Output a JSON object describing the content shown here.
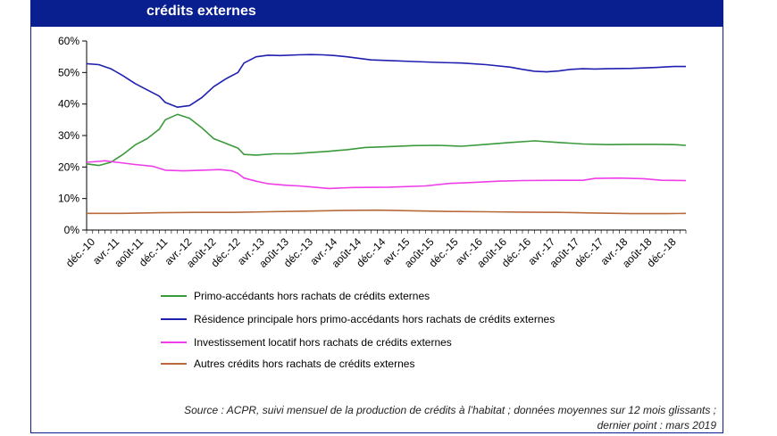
{
  "header": {
    "title": "crédits externes"
  },
  "chart_data": {
    "type": "line",
    "title": "crédits externes",
    "ylim": [
      0,
      60
    ],
    "yticks": [
      "0%",
      "10%",
      "20%",
      "30%",
      "40%",
      "50%",
      "60%"
    ],
    "ytick_values": [
      0,
      10,
      20,
      30,
      40,
      50,
      60
    ],
    "grid": false,
    "legend_position": "bottom",
    "x_tick_labels": [
      "déc.-10",
      "avr.-11",
      "août-11",
      "déc.-11",
      "avr.-12",
      "août-12",
      "déc.-12",
      "avr.-13",
      "août-13",
      "déc.-13",
      "avr.-14",
      "août-14",
      "déc.-14",
      "avr.-15",
      "août-15",
      "déc.-15",
      "avr.-16",
      "août-16",
      "déc.-16",
      "avr.-17",
      "août-17",
      "déc.-17",
      "avr.-18",
      "août-18",
      "déc.-18"
    ],
    "x_tick_months": [
      0,
      4,
      8,
      12,
      16,
      20,
      24,
      28,
      32,
      36,
      40,
      44,
      48,
      52,
      56,
      60,
      64,
      68,
      72,
      76,
      80,
      84,
      88,
      92,
      96
    ],
    "x_max_month": 99,
    "series": [
      {
        "name": "Primo-accédants hors rachats de crédits externes",
        "color": "#3a9a3a",
        "points": [
          [
            0,
            21
          ],
          [
            2,
            20.5
          ],
          [
            4,
            21.5
          ],
          [
            6,
            24
          ],
          [
            8,
            27
          ],
          [
            10,
            29
          ],
          [
            12,
            32
          ],
          [
            13,
            35
          ],
          [
            15,
            36.7
          ],
          [
            17,
            35.5
          ],
          [
            19,
            32.5
          ],
          [
            21,
            29
          ],
          [
            23,
            27.5
          ],
          [
            25,
            26
          ],
          [
            26,
            24
          ],
          [
            28,
            23.8
          ],
          [
            31,
            24.2
          ],
          [
            34,
            24.2
          ],
          [
            37,
            24.6
          ],
          [
            40,
            25
          ],
          [
            43,
            25.5
          ],
          [
            46,
            26.2
          ],
          [
            50,
            26.5
          ],
          [
            54,
            26.8
          ],
          [
            58,
            26.9
          ],
          [
            62,
            26.6
          ],
          [
            66,
            27.2
          ],
          [
            70,
            27.8
          ],
          [
            74,
            28.3
          ],
          [
            78,
            27.8
          ],
          [
            82,
            27.3
          ],
          [
            86,
            27.1
          ],
          [
            90,
            27.2
          ],
          [
            94,
            27.2
          ],
          [
            97,
            27.1
          ],
          [
            99,
            26.9
          ]
        ]
      },
      {
        "name": "Résidence principale hors primo-accédants hors rachats de crédits externes",
        "color": "#1f1fb0",
        "points": [
          [
            0,
            52.8
          ],
          [
            2,
            52.5
          ],
          [
            4,
            51.2
          ],
          [
            6,
            49
          ],
          [
            8,
            46.5
          ],
          [
            10,
            44.5
          ],
          [
            12,
            42.5
          ],
          [
            13,
            40.5
          ],
          [
            15,
            39
          ],
          [
            17,
            39.5
          ],
          [
            19,
            42
          ],
          [
            21,
            45.5
          ],
          [
            23,
            48
          ],
          [
            25,
            50
          ],
          [
            26,
            53
          ],
          [
            28,
            55
          ],
          [
            30,
            55.5
          ],
          [
            32,
            55.4
          ],
          [
            35,
            55.6
          ],
          [
            37,
            55.7
          ],
          [
            39,
            55.6
          ],
          [
            41,
            55.4
          ],
          [
            43,
            55
          ],
          [
            45,
            54.5
          ],
          [
            47,
            54
          ],
          [
            50,
            53.8
          ],
          [
            54,
            53.5
          ],
          [
            58,
            53.2
          ],
          [
            62,
            53
          ],
          [
            66,
            52.5
          ],
          [
            70,
            51.7
          ],
          [
            72,
            51
          ],
          [
            74,
            50.4
          ],
          [
            76,
            50.2
          ],
          [
            78,
            50.5
          ],
          [
            80,
            51
          ],
          [
            82,
            51.2
          ],
          [
            84,
            51.1
          ],
          [
            86,
            51.2
          ],
          [
            90,
            51.3
          ],
          [
            94,
            51.6
          ],
          [
            97,
            51.9
          ],
          [
            99,
            51.9
          ]
        ]
      },
      {
        "name": "Investissement locatif hors rachats de crédits externes",
        "color": "#ee3ee8",
        "points": [
          [
            0,
            21.5
          ],
          [
            2,
            21.8
          ],
          [
            3,
            22
          ],
          [
            5,
            21.5
          ],
          [
            8,
            20.8
          ],
          [
            11,
            20.2
          ],
          [
            13,
            19
          ],
          [
            16,
            18.8
          ],
          [
            19,
            19
          ],
          [
            22,
            19.2
          ],
          [
            24,
            18.8
          ],
          [
            25,
            18
          ],
          [
            26,
            16.5
          ],
          [
            28,
            15.5
          ],
          [
            30,
            14.7
          ],
          [
            33,
            14.2
          ],
          [
            35,
            14
          ],
          [
            37,
            13.7
          ],
          [
            40,
            13.2
          ],
          [
            44,
            13.5
          ],
          [
            50,
            13.6
          ],
          [
            56,
            14
          ],
          [
            60,
            14.8
          ],
          [
            64,
            15.1
          ],
          [
            68,
            15.5
          ],
          [
            72,
            15.7
          ],
          [
            78,
            15.8
          ],
          [
            82,
            15.8
          ],
          [
            84,
            16.4
          ],
          [
            88,
            16.5
          ],
          [
            92,
            16.3
          ],
          [
            95,
            15.8
          ],
          [
            99,
            15.7
          ]
        ]
      },
      {
        "name": "Autres crédits hors rachats de crédits externes",
        "color": "#b86a3a",
        "points": [
          [
            0,
            5.3
          ],
          [
            6,
            5.3
          ],
          [
            12,
            5.5
          ],
          [
            18,
            5.6
          ],
          [
            24,
            5.6
          ],
          [
            30,
            5.8
          ],
          [
            36,
            6
          ],
          [
            42,
            6.2
          ],
          [
            48,
            6.3
          ],
          [
            54,
            6.1
          ],
          [
            60,
            5.9
          ],
          [
            66,
            5.8
          ],
          [
            72,
            5.7
          ],
          [
            78,
            5.6
          ],
          [
            84,
            5.4
          ],
          [
            90,
            5.2
          ],
          [
            96,
            5.2
          ],
          [
            99,
            5.3
          ]
        ]
      }
    ]
  },
  "source": {
    "line1": "Source : ACPR, suivi mensuel de la production de crédits à l’habitat ; données moyennes sur 12 mois glissants ;",
    "line2": "dernier point : mars 2019"
  }
}
